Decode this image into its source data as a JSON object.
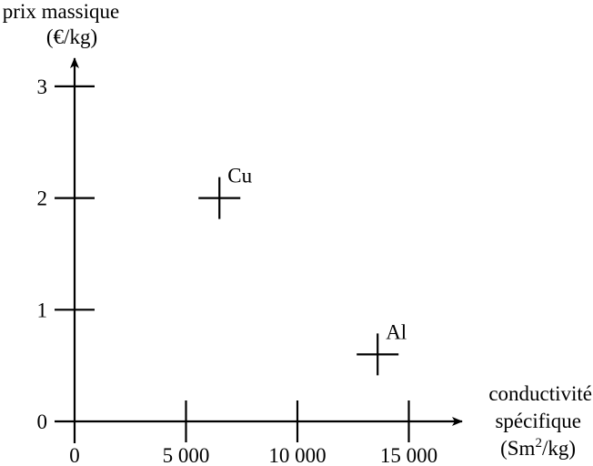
{
  "chart_data": {
    "type": "scatter",
    "title": "",
    "ylabel": [
      "prix massique",
      "(€/kg)"
    ],
    "xlabel": [
      "conductivité",
      "spécifique",
      "(Sm",
      "2",
      "/kg)"
    ],
    "xlim": [
      0,
      17000
    ],
    "ylim": [
      0,
      3.3
    ],
    "xticks": [
      0,
      5000,
      10000,
      15000
    ],
    "xtick_labels": [
      "0",
      "5 000",
      "10 000",
      "15 000"
    ],
    "yticks": [
      0,
      1,
      2,
      3
    ],
    "ytick_labels": [
      "0",
      "1",
      "2",
      "3"
    ],
    "grid": false,
    "marker": "cross",
    "points": [
      {
        "label": "Cu",
        "x": 6500,
        "y": 2.0
      },
      {
        "label": "Al",
        "x": 13600,
        "y": 0.6
      }
    ]
  }
}
